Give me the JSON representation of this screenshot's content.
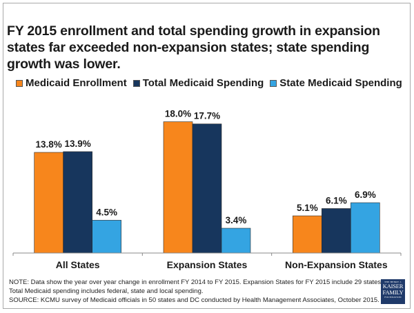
{
  "title": "FY 2015 enrollment and total spending growth in expansion states far exceeded non-expansion states; state spending growth was lower.",
  "legend": [
    {
      "label": "Medicaid Enrollment",
      "color": "#f7861c"
    },
    {
      "label": "Total Medicaid Spending",
      "color": "#17365d"
    },
    {
      "label": "State Medicaid Spending",
      "color": "#34a4e2"
    }
  ],
  "chart_data": {
    "type": "bar",
    "title": "FY 2015 enrollment and total spending growth in expansion states far exceeded non-expansion states; state spending growth was lower.",
    "xlabel": "",
    "ylabel": "",
    "ylim": [
      0,
      20
    ],
    "grid": false,
    "legend_position": "top",
    "categories": [
      "All States",
      "Expansion States",
      "Non-Expansion States"
    ],
    "series": [
      {
        "name": "Medicaid Enrollment",
        "color": "#f7861c",
        "values": [
          13.8,
          18.0,
          5.1
        ],
        "labels": [
          "13.8%",
          "18.0%",
          "5.1%"
        ]
      },
      {
        "name": "Total Medicaid Spending",
        "color": "#17365d",
        "values": [
          13.9,
          17.7,
          6.1
        ],
        "labels": [
          "13.9%",
          "17.7%",
          "6.1%"
        ]
      },
      {
        "name": "State Medicaid Spending",
        "color": "#34a4e2",
        "values": [
          4.5,
          3.4,
          6.9
        ],
        "labels": [
          "4.5%",
          "3.4%",
          "6.9%"
        ]
      }
    ]
  },
  "notes": {
    "line1": "NOTE: Data show the year over year change in enrollment FY 2014 to FY 2015. Expansion States for FY 2015 include 29 states.",
    "line2": "Total Medicaid spending includes federal, state and local spending.",
    "line3": "SOURCE: KCMU survey of Medicaid officials in 50 states and DC conducted by Health Management Associates, October 2015."
  },
  "logo": {
    "line1": "THE HENRY J.",
    "line2": "KAISER",
    "line3": "FAMILY",
    "line4": "FOUNDATION"
  }
}
